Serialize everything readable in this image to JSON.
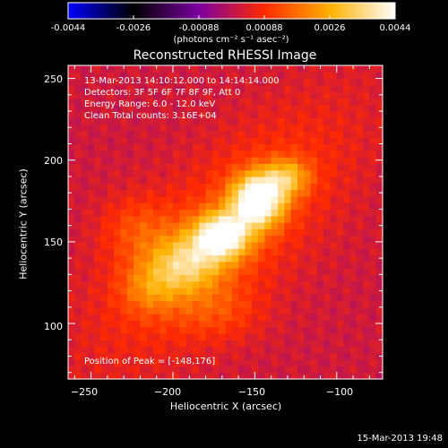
{
  "chart_data": {
    "type": "heatmap",
    "title": "Reconstructed RHESSI Image",
    "colorbar": {
      "label": "(photons cm⁻² s⁻¹ asec⁻²)",
      "range": [
        -0.0044,
        0.0044
      ],
      "tick_labels": [
        "-0.0044",
        "-0.0026",
        "-0.00088",
        "0.00088",
        "0.0026",
        "0.0044"
      ],
      "colormap_stops": [
        "#0000ff",
        "#000000",
        "#7a00a0",
        "#ff2a00",
        "#ffb000",
        "#ffffff"
      ]
    },
    "annotations": [
      "13-Mar-2013 14:10:12.000 to 14:14:14.000",
      "Detectors: 3F 5F 6F 7F 8F 9F, Att 0",
      "Energy Range: 6.0 - 12.0 keV",
      "Clean     Total counts: 3.16E+04"
    ],
    "peak_label": "Position of Peak = [-148,176]",
    "xlabel": "Heliocentric X (arcsec)",
    "ylabel": "Heliocentric Y (arcsec)",
    "xlim": [
      -264,
      -72
    ],
    "ylim": [
      66,
      258
    ],
    "xticks": [
      -250,
      -200,
      -150,
      -100
    ],
    "xtick_labels": [
      "−250",
      "−200",
      "−150",
      "−100"
    ],
    "yticks": [
      100,
      150,
      200,
      250
    ],
    "ytick_labels": [
      "100",
      "150",
      "200",
      "250"
    ],
    "peak": {
      "x": -148,
      "y": 176
    },
    "sources": [
      {
        "x": -148,
        "y": 176,
        "sx": 11,
        "sy": 11,
        "amp": 0.0044
      },
      {
        "x": -170,
        "y": 154,
        "sx": 12,
        "sy": 10,
        "amp": 0.0037
      },
      {
        "x": -192,
        "y": 137,
        "sx": 15,
        "sy": 12,
        "amp": 0.0023
      },
      {
        "x": -214,
        "y": 122,
        "sx": 13,
        "sy": 11,
        "amp": 0.0012
      },
      {
        "x": -130,
        "y": 190,
        "sx": 10,
        "sy": 8,
        "amp": 0.0019
      },
      {
        "x": -222,
        "y": 158,
        "sx": 15,
        "sy": 14,
        "amp": 0.0009
      },
      {
        "x": -172,
        "y": 108,
        "sx": 18,
        "sy": 12,
        "amp": 0.0007
      }
    ],
    "background": 0.00022
  },
  "timestamp": "15-Mar-2013 19:48"
}
